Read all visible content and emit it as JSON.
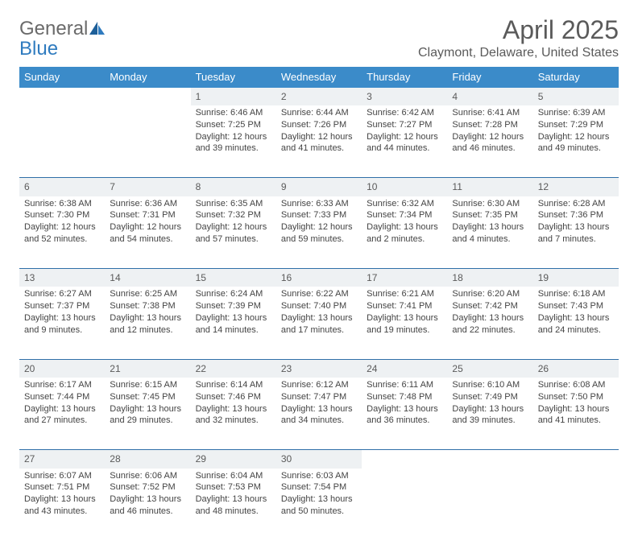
{
  "logo": {
    "text1": "General",
    "text2": "Blue"
  },
  "title": "April 2025",
  "location": "Claymont, Delaware, United States",
  "colors": {
    "header_bg": "#3b8bc9",
    "header_text": "#ffffff",
    "daynum_bg": "#eef1f3",
    "row_border": "#2f6fa8",
    "logo_gray": "#6a6a6a",
    "logo_blue": "#2f7bbf"
  },
  "day_headers": [
    "Sunday",
    "Monday",
    "Tuesday",
    "Wednesday",
    "Thursday",
    "Friday",
    "Saturday"
  ],
  "weeks": [
    [
      null,
      null,
      {
        "n": "1",
        "sr": "6:46 AM",
        "ss": "7:25 PM",
        "dl": "12 hours and 39 minutes."
      },
      {
        "n": "2",
        "sr": "6:44 AM",
        "ss": "7:26 PM",
        "dl": "12 hours and 41 minutes."
      },
      {
        "n": "3",
        "sr": "6:42 AM",
        "ss": "7:27 PM",
        "dl": "12 hours and 44 minutes."
      },
      {
        "n": "4",
        "sr": "6:41 AM",
        "ss": "7:28 PM",
        "dl": "12 hours and 46 minutes."
      },
      {
        "n": "5",
        "sr": "6:39 AM",
        "ss": "7:29 PM",
        "dl": "12 hours and 49 minutes."
      }
    ],
    [
      {
        "n": "6",
        "sr": "6:38 AM",
        "ss": "7:30 PM",
        "dl": "12 hours and 52 minutes."
      },
      {
        "n": "7",
        "sr": "6:36 AM",
        "ss": "7:31 PM",
        "dl": "12 hours and 54 minutes."
      },
      {
        "n": "8",
        "sr": "6:35 AM",
        "ss": "7:32 PM",
        "dl": "12 hours and 57 minutes."
      },
      {
        "n": "9",
        "sr": "6:33 AM",
        "ss": "7:33 PM",
        "dl": "12 hours and 59 minutes."
      },
      {
        "n": "10",
        "sr": "6:32 AM",
        "ss": "7:34 PM",
        "dl": "13 hours and 2 minutes."
      },
      {
        "n": "11",
        "sr": "6:30 AM",
        "ss": "7:35 PM",
        "dl": "13 hours and 4 minutes."
      },
      {
        "n": "12",
        "sr": "6:28 AM",
        "ss": "7:36 PM",
        "dl": "13 hours and 7 minutes."
      }
    ],
    [
      {
        "n": "13",
        "sr": "6:27 AM",
        "ss": "7:37 PM",
        "dl": "13 hours and 9 minutes."
      },
      {
        "n": "14",
        "sr": "6:25 AM",
        "ss": "7:38 PM",
        "dl": "13 hours and 12 minutes."
      },
      {
        "n": "15",
        "sr": "6:24 AM",
        "ss": "7:39 PM",
        "dl": "13 hours and 14 minutes."
      },
      {
        "n": "16",
        "sr": "6:22 AM",
        "ss": "7:40 PM",
        "dl": "13 hours and 17 minutes."
      },
      {
        "n": "17",
        "sr": "6:21 AM",
        "ss": "7:41 PM",
        "dl": "13 hours and 19 minutes."
      },
      {
        "n": "18",
        "sr": "6:20 AM",
        "ss": "7:42 PM",
        "dl": "13 hours and 22 minutes."
      },
      {
        "n": "19",
        "sr": "6:18 AM",
        "ss": "7:43 PM",
        "dl": "13 hours and 24 minutes."
      }
    ],
    [
      {
        "n": "20",
        "sr": "6:17 AM",
        "ss": "7:44 PM",
        "dl": "13 hours and 27 minutes."
      },
      {
        "n": "21",
        "sr": "6:15 AM",
        "ss": "7:45 PM",
        "dl": "13 hours and 29 minutes."
      },
      {
        "n": "22",
        "sr": "6:14 AM",
        "ss": "7:46 PM",
        "dl": "13 hours and 32 minutes."
      },
      {
        "n": "23",
        "sr": "6:12 AM",
        "ss": "7:47 PM",
        "dl": "13 hours and 34 minutes."
      },
      {
        "n": "24",
        "sr": "6:11 AM",
        "ss": "7:48 PM",
        "dl": "13 hours and 36 minutes."
      },
      {
        "n": "25",
        "sr": "6:10 AM",
        "ss": "7:49 PM",
        "dl": "13 hours and 39 minutes."
      },
      {
        "n": "26",
        "sr": "6:08 AM",
        "ss": "7:50 PM",
        "dl": "13 hours and 41 minutes."
      }
    ],
    [
      {
        "n": "27",
        "sr": "6:07 AM",
        "ss": "7:51 PM",
        "dl": "13 hours and 43 minutes."
      },
      {
        "n": "28",
        "sr": "6:06 AM",
        "ss": "7:52 PM",
        "dl": "13 hours and 46 minutes."
      },
      {
        "n": "29",
        "sr": "6:04 AM",
        "ss": "7:53 PM",
        "dl": "13 hours and 48 minutes."
      },
      {
        "n": "30",
        "sr": "6:03 AM",
        "ss": "7:54 PM",
        "dl": "13 hours and 50 minutes."
      },
      null,
      null,
      null
    ]
  ],
  "labels": {
    "sunrise": "Sunrise: ",
    "sunset": "Sunset: ",
    "daylight": "Daylight: "
  }
}
